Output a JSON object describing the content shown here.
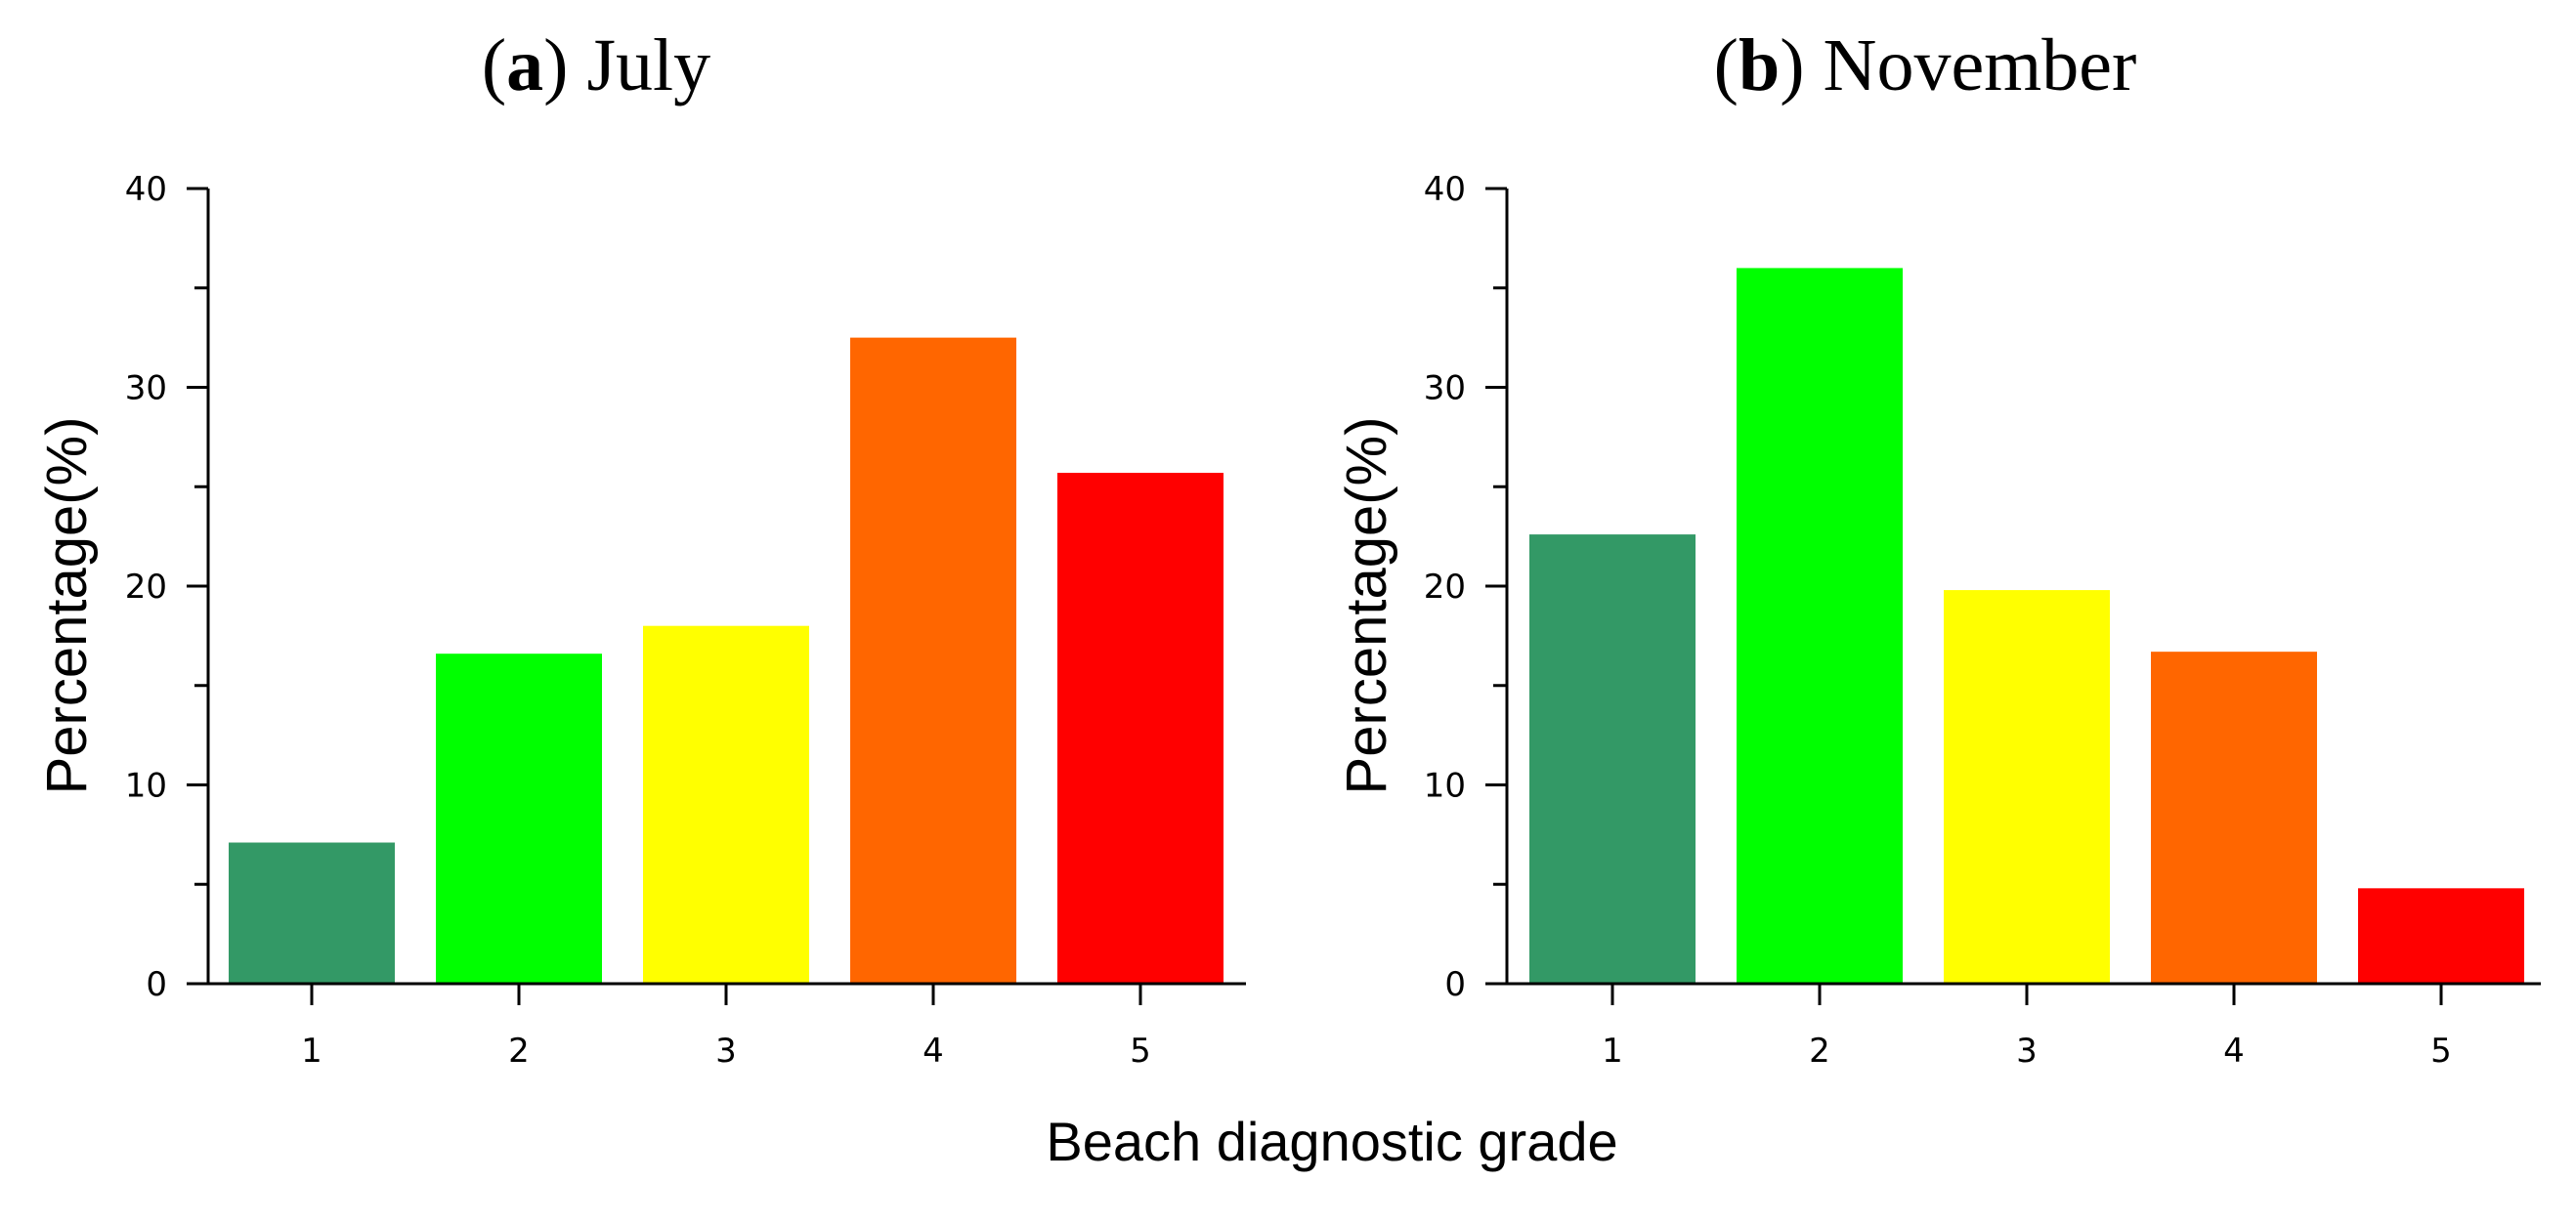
{
  "xlabel": "Beach diagnostic grade",
  "chart_data": [
    {
      "type": "bar",
      "panel": "a",
      "title": "July",
      "categories": [
        "1",
        "2",
        "3",
        "4",
        "5"
      ],
      "values": [
        7.1,
        16.6,
        18.0,
        32.5,
        25.7
      ],
      "colors": [
        "#339966",
        "#00FF00",
        "#FFFF00",
        "#FF6600",
        "#FF0000"
      ],
      "xlabel": "Beach diagnostic grade",
      "ylabel": "Percentage(%)",
      "ylim": [
        0,
        40
      ],
      "yticks": [
        0,
        10,
        20,
        30,
        40
      ],
      "grid": false
    },
    {
      "type": "bar",
      "panel": "b",
      "title": "November",
      "categories": [
        "1",
        "2",
        "3",
        "4",
        "5"
      ],
      "values": [
        22.6,
        36.0,
        19.8,
        16.7,
        4.8
      ],
      "colors": [
        "#339966",
        "#00FF00",
        "#FFFF00",
        "#FF6600",
        "#FF0000"
      ],
      "xlabel": "Beach diagnostic grade",
      "ylabel": "Percentage(%)",
      "ylim": [
        0,
        40
      ],
      "yticks": [
        0,
        10,
        20,
        30,
        40
      ],
      "grid": false
    }
  ]
}
